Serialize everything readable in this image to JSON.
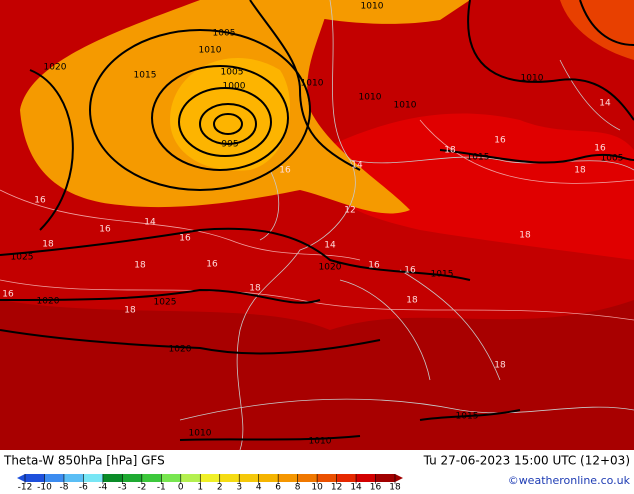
{
  "header": {
    "title": "Theta-W 850hPa [hPa] GFS",
    "datetime": "Tu 27-06-2023 15:00 UTC (12+03)",
    "credit": "©weatheronline.co.uk"
  },
  "legend": {
    "ticks": [
      -12,
      -10,
      -8,
      -6,
      -4,
      -3,
      -2,
      -1,
      0,
      1,
      2,
      3,
      4,
      6,
      8,
      10,
      12,
      14,
      16,
      18
    ],
    "colors": [
      "#1e50dc",
      "#3c8cf0",
      "#5abef5",
      "#78e6f5",
      "#0a8c28",
      "#1eaa32",
      "#3cc83c",
      "#78e650",
      "#b4f050",
      "#f0f028",
      "#f5dc14",
      "#f5c80a",
      "#f5b400",
      "#f59600",
      "#f07800",
      "#eb5000",
      "#e62800",
      "#d20000",
      "#a00000"
    ]
  },
  "map": {
    "isobar_labels": [
      1010,
      1005,
      1010,
      1015,
      1020,
      1005,
      1000,
      995,
      1010,
      1010,
      1010,
      1010,
      1015,
      1005,
      1015,
      1020,
      1025,
      1020,
      1025,
      1020,
      1015,
      1010,
      1010
    ],
    "theta_labels": [
      16,
      16,
      18,
      14,
      16,
      16,
      18,
      18,
      18,
      16,
      14,
      16,
      16,
      18,
      18,
      16,
      14,
      16,
      18,
      18,
      18,
      16,
      12,
      14
    ]
  }
}
